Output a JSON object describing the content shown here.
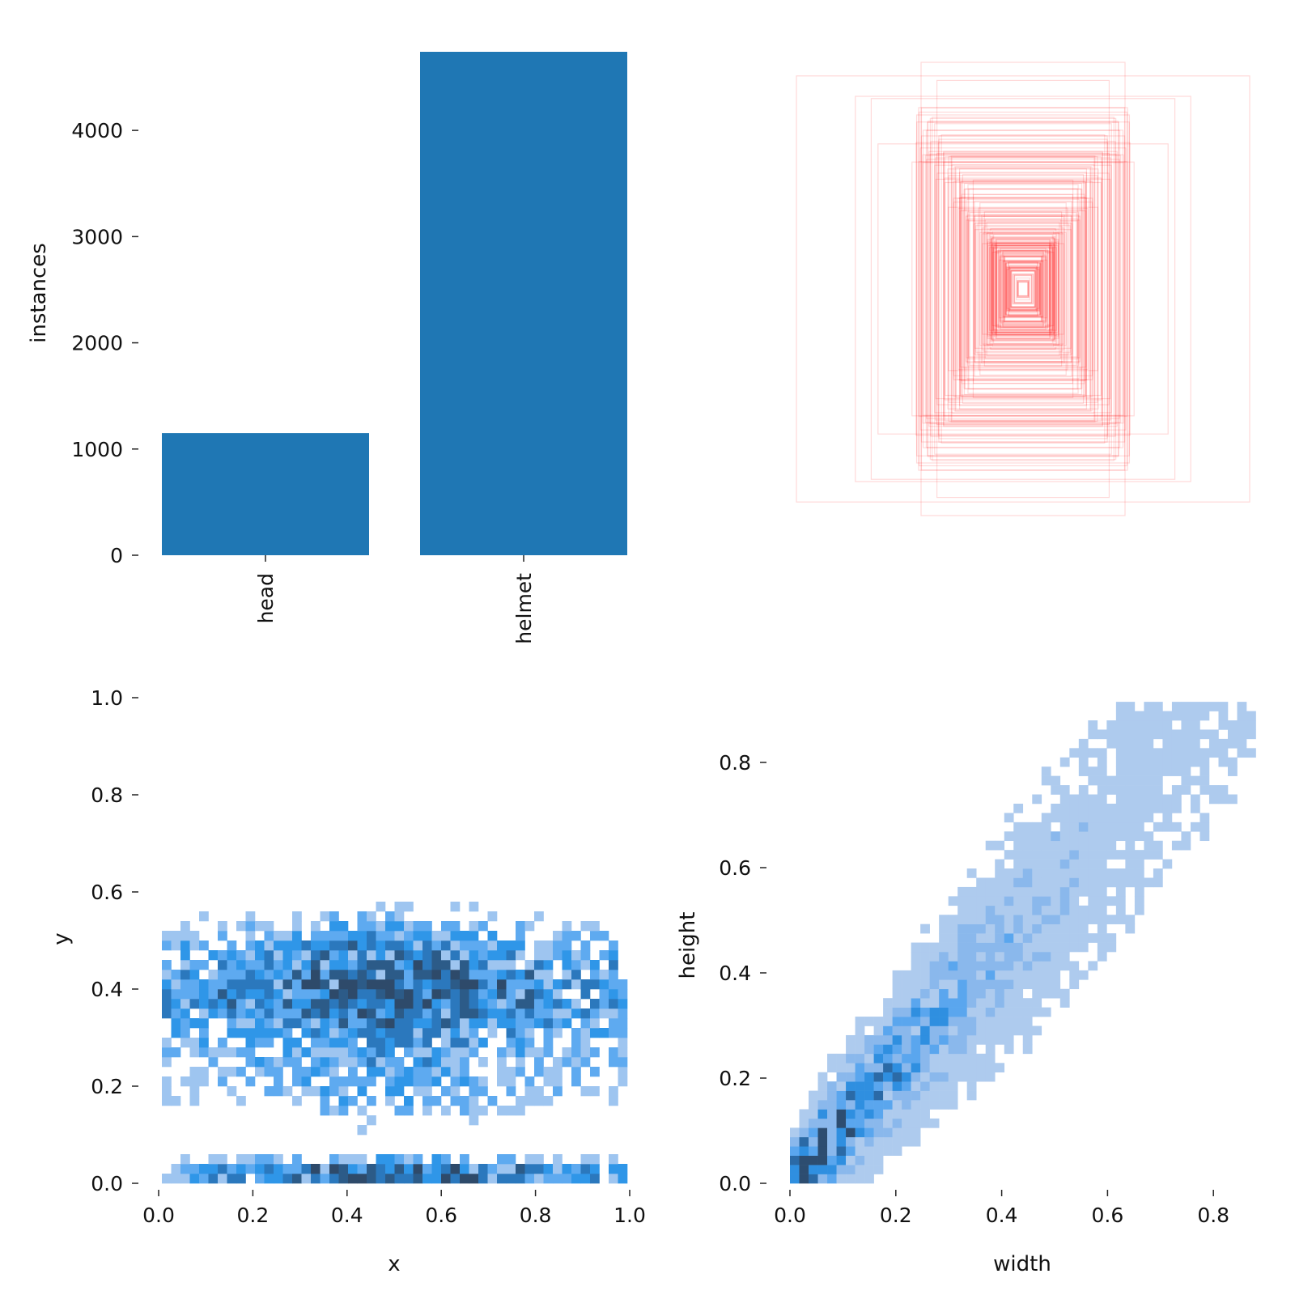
{
  "chart_data": [
    {
      "panel": "class-counts",
      "type": "bar",
      "categories": [
        "head",
        "helmet"
      ],
      "values": [
        1150,
        4740
      ],
      "xlabel": "",
      "ylabel": "instances",
      "ylim": [
        0,
        4740
      ],
      "yticks": [
        "0",
        "1000",
        "2000",
        "3000",
        "4000"
      ],
      "bar_color": "#1f77b4",
      "grid": false
    },
    {
      "panel": "box-overlay",
      "type": "other",
      "description_values": {
        "box_color": "#ff0000",
        "box_opacity": 0.15,
        "box_sizes_wh": [
          [
            1.0,
            0.94
          ],
          [
            0.45,
            1.0
          ],
          [
            0.74,
            0.85
          ],
          [
            0.67,
            0.84
          ],
          [
            0.38,
            0.92
          ],
          [
            0.64,
            0.64
          ],
          [
            0.49,
            0.56
          ],
          [
            0.42,
            0.74
          ],
          [
            0.36,
            0.68
          ],
          [
            0.28,
            0.53
          ],
          [
            0.22,
            0.48
          ],
          [
            0.33,
            0.36
          ],
          [
            0.35,
            0.56
          ],
          [
            0.26,
            0.44
          ],
          [
            0.24,
            0.3
          ],
          [
            0.19,
            0.38
          ],
          [
            0.17,
            0.34
          ],
          [
            0.15,
            0.26
          ],
          [
            0.12,
            0.22
          ],
          [
            0.1,
            0.18
          ],
          [
            0.08,
            0.14
          ],
          [
            0.06,
            0.1
          ],
          [
            0.05,
            0.08
          ],
          [
            0.2,
            0.29
          ],
          [
            0.13,
            0.24
          ],
          [
            0.29,
            0.4
          ],
          [
            0.18,
            0.2
          ],
          [
            0.09,
            0.16
          ],
          [
            0.04,
            0.06
          ],
          [
            0.02,
            0.03
          ]
        ]
      }
    },
    {
      "panel": "center-distribution",
      "type": "heatmap",
      "xlabel": "x",
      "ylabel": "y",
      "xlim": [
        0,
        1
      ],
      "ylim": [
        0,
        1
      ],
      "xticks": [
        "0.0",
        "0.2",
        "0.4",
        "0.6",
        "0.8",
        "1.0"
      ],
      "yticks": [
        "0.0",
        "0.2",
        "0.4",
        "0.6",
        "0.8",
        "1.0"
      ],
      "bins": 50,
      "density_peaks": {
        "y_band_center": 0.4,
        "y_band_width": 0.12,
        "bottom_band_center": 0.02,
        "x_center": 0.5
      },
      "colors": [
        "#9ec5f0",
        "#5eaaf0",
        "#2f96e8",
        "#2b78bd",
        "#2c5b88",
        "#2e4a6a"
      ]
    },
    {
      "panel": "size-distribution",
      "type": "heatmap",
      "xlabel": "width",
      "ylabel": "height",
      "xlim": [
        0,
        0.88
      ],
      "ylim": [
        0,
        0.91
      ],
      "xticks": [
        "0.0",
        "0.2",
        "0.4",
        "0.6",
        "0.8"
      ],
      "yticks": [
        "0.0",
        "0.2",
        "0.4",
        "0.6",
        "0.8"
      ],
      "bins": 50,
      "trend": {
        "slope": 1.1,
        "spread": 0.06
      },
      "colors": [
        "#aecbee",
        "#8ab8ec",
        "#5aa6ee",
        "#2f8fe0",
        "#2b6aa6",
        "#2d4d70"
      ]
    }
  ]
}
